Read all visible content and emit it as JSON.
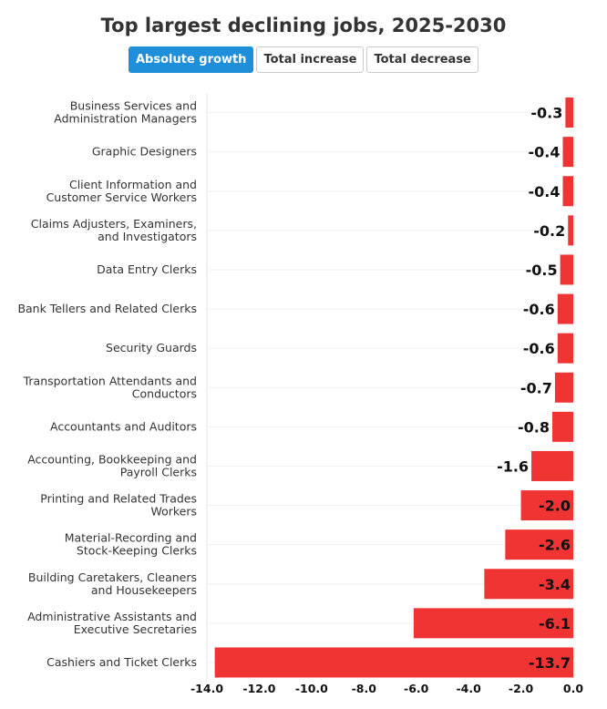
{
  "chart_data": {
    "type": "bar",
    "orientation": "horizontal",
    "title": "Top largest declining jobs, 2025-2030",
    "categories": [
      [
        "Business Services and",
        "Administration Managers"
      ],
      [
        "Graphic Designers"
      ],
      [
        "Client Information and",
        "Customer Service Workers"
      ],
      [
        "Claims Adjusters, Examiners,",
        "and Investigators"
      ],
      [
        "Data Entry Clerks"
      ],
      [
        "Bank Tellers and Related Clerks"
      ],
      [
        "Security Guards"
      ],
      [
        "Transportation Attendants and",
        "Conductors"
      ],
      [
        "Accountants and Auditors"
      ],
      [
        "Accounting, Bookkeeping and",
        "Payroll Clerks"
      ],
      [
        "Printing and Related Trades",
        "Workers"
      ],
      [
        "Material-Recording and",
        "Stock-Keeping Clerks"
      ],
      [
        "Building Caretakers, Cleaners",
        "and Housekeepers"
      ],
      [
        "Administrative Assistants and",
        "Executive Secretaries"
      ],
      [
        "Cashiers and Ticket Clerks"
      ]
    ],
    "values": [
      -0.3,
      -0.4,
      -0.4,
      -0.2,
      -0.5,
      -0.6,
      -0.6,
      -0.7,
      -0.8,
      -1.6,
      -2.0,
      -2.6,
      -3.4,
      -6.1,
      -13.7
    ],
    "value_labels": [
      "-0.3",
      "-0.4",
      "-0.4",
      "-0.2",
      "-0.5",
      "-0.6",
      "-0.6",
      "-0.7",
      "-0.8",
      "-1.6",
      "-2.0",
      "-2.6",
      "-3.4",
      "-6.1",
      "-13.7"
    ],
    "xlim": [
      -14,
      0
    ],
    "xticks": [
      "-14.0",
      "-12.0",
      "-10.0",
      "-8.0",
      "-6.0",
      "-4.0",
      "-2.0",
      "0.0"
    ],
    "xtick_values": [
      -14,
      -12,
      -10,
      -8,
      -6,
      -4,
      -2,
      0
    ],
    "bar_color": "#f03333",
    "grid": true
  },
  "buttons": {
    "absolute": "Absolute growth",
    "increase": "Total increase",
    "decrease": "Total decrease"
  }
}
